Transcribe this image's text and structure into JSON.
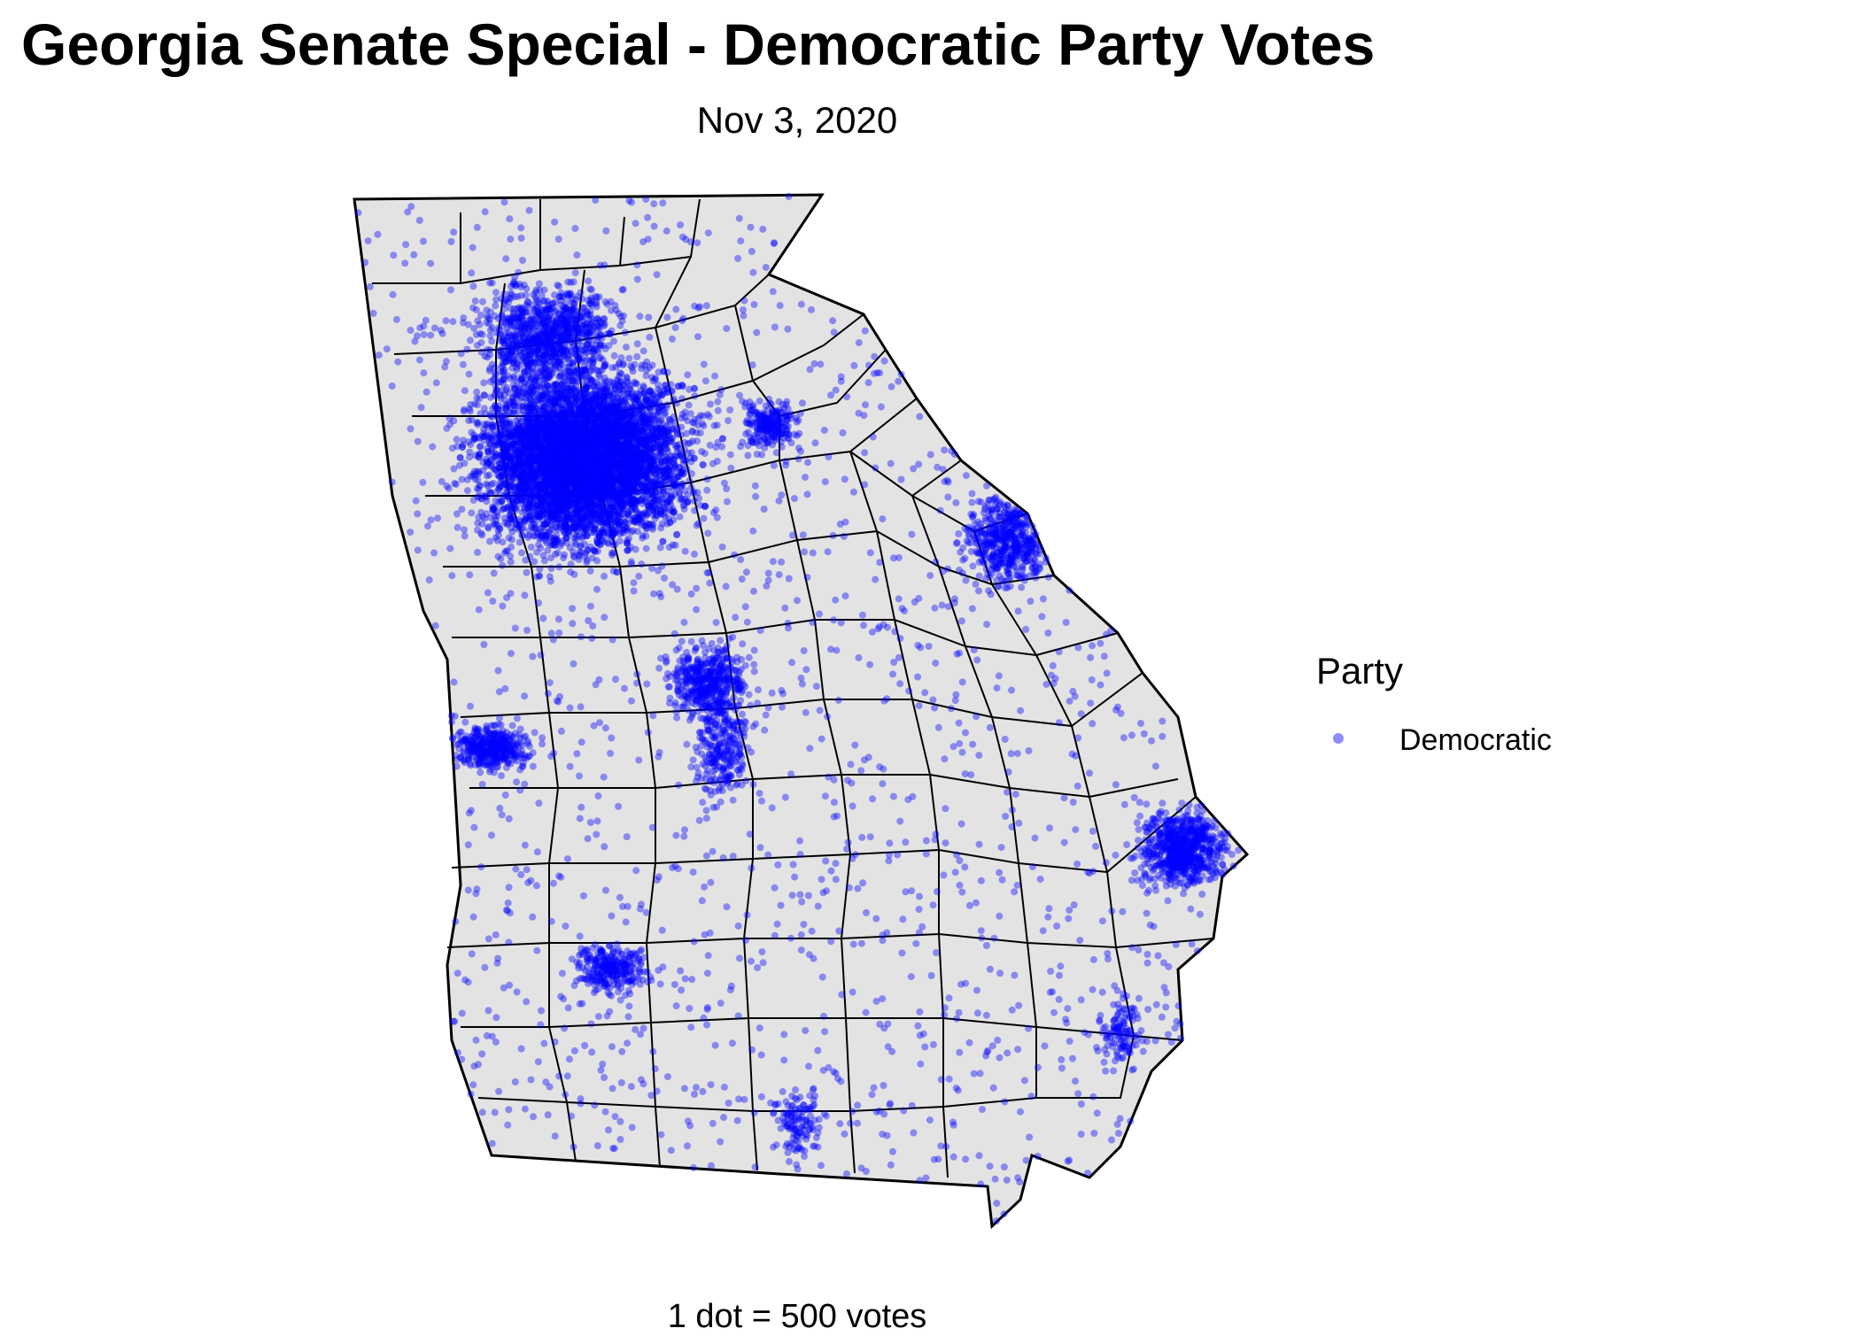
{
  "title": "Georgia Senate Special - Democratic Party Votes",
  "subtitle": "Nov 3, 2020",
  "legend": {
    "title": "Party",
    "entries": [
      {
        "label": "Democratic",
        "color": "#0000ff"
      }
    ]
  },
  "caption": "1 dot = 500 votes",
  "colors": {
    "state_fill": "#e3e3e3",
    "county_border": "#000000",
    "dot": "#0000ff"
  },
  "dot_opacity": 0.4,
  "chart_data": {
    "type": "dot-density map",
    "region": "Georgia",
    "series": [
      {
        "name": "Democratic",
        "color": "#0000ff"
      }
    ],
    "dot_value_votes": 500
  }
}
